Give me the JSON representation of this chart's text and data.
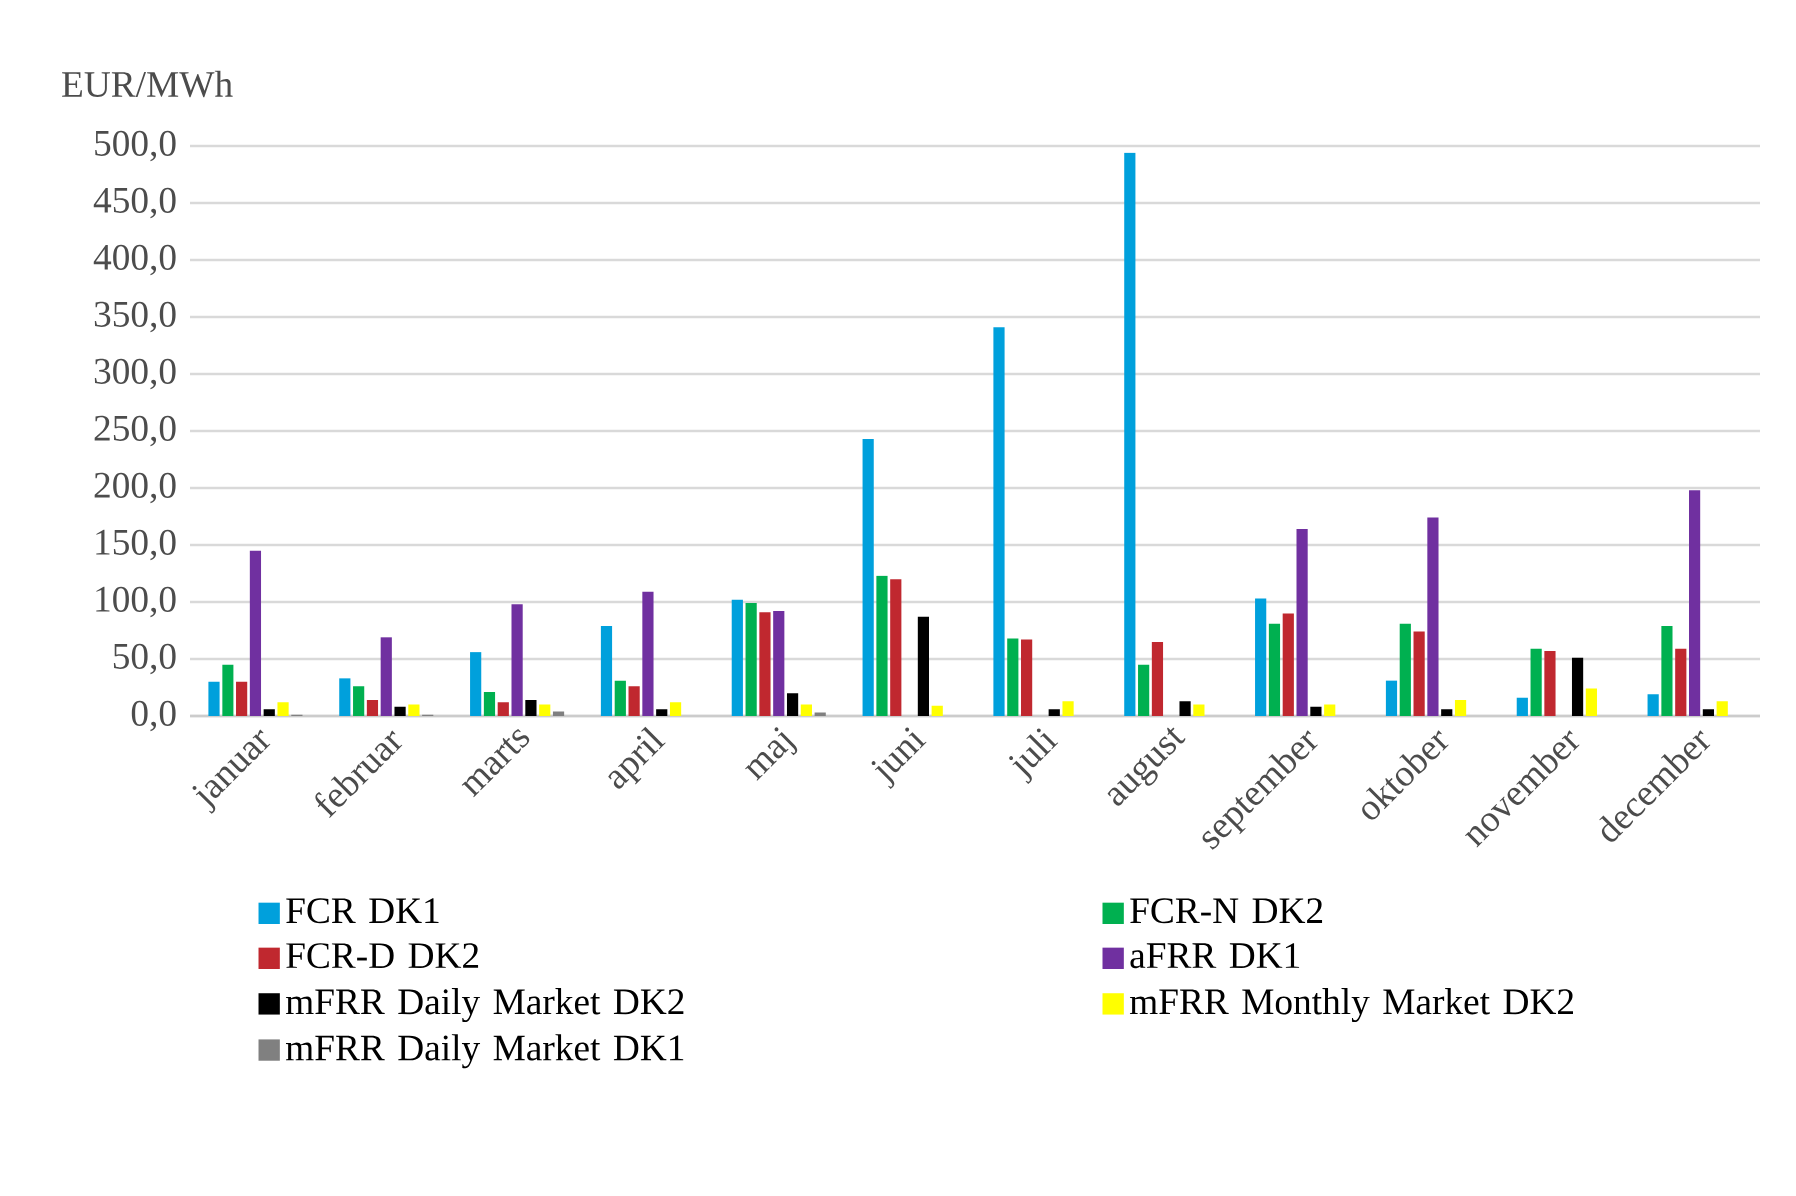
{
  "chart_data": {
    "type": "bar",
    "ylabel": "EUR/MWh",
    "categories": [
      "januar",
      "februar",
      "marts",
      "april",
      "maj",
      "juni",
      "juli",
      "august",
      "september",
      "oktober",
      "november",
      "december"
    ],
    "series": [
      {
        "name": "FCR DK1",
        "color": "#00a0dc",
        "values": [
          30,
          33,
          56,
          79,
          102,
          243,
          341,
          494,
          103,
          31,
          16,
          19
        ]
      },
      {
        "name": "FCR-N DK2",
        "color": "#00b050",
        "values": [
          45,
          26,
          21,
          31,
          99,
          123,
          68,
          45,
          81,
          81,
          59,
          79
        ]
      },
      {
        "name": "FCR-D DK2",
        "color": "#c0282f",
        "values": [
          30,
          14,
          12,
          26,
          91,
          120,
          67,
          65,
          90,
          74,
          57,
          59
        ]
      },
      {
        "name": "aFRR DK1",
        "color": "#7030a0",
        "values": [
          145,
          69,
          98,
          109,
          92,
          null,
          null,
          null,
          164,
          174,
          null,
          198
        ]
      },
      {
        "name": "mFRR Daily Market DK2",
        "color": "#000000",
        "values": [
          6,
          8,
          14,
          6,
          20,
          87,
          6,
          13,
          8,
          6,
          51,
          6
        ]
      },
      {
        "name": "mFRR Monthly Market DK2",
        "color": "#ffff00",
        "values": [
          12,
          10,
          10,
          12,
          10,
          9,
          13,
          10,
          10,
          14,
          24,
          13
        ]
      },
      {
        "name": "mFRR Daily Market DK1",
        "color": "#808080",
        "values": [
          1,
          1,
          4,
          null,
          3,
          null,
          null,
          null,
          null,
          null,
          null,
          null
        ]
      }
    ],
    "ylim": [
      0,
      500
    ],
    "yticks": [
      {
        "value": 0,
        "label": "0,0"
      },
      {
        "value": 50,
        "label": "50,0"
      },
      {
        "value": 100,
        "label": "100,0"
      },
      {
        "value": 150,
        "label": "150,0"
      },
      {
        "value": 200,
        "label": "200,0"
      },
      {
        "value": 250,
        "label": "250,0"
      },
      {
        "value": 300,
        "label": "300,0"
      },
      {
        "value": 350,
        "label": "350,0"
      },
      {
        "value": 400,
        "label": "400,0"
      },
      {
        "value": 450,
        "label": "450,0"
      },
      {
        "value": 500,
        "label": "500,0"
      }
    ],
    "grid": "y",
    "legend": "bottom"
  }
}
